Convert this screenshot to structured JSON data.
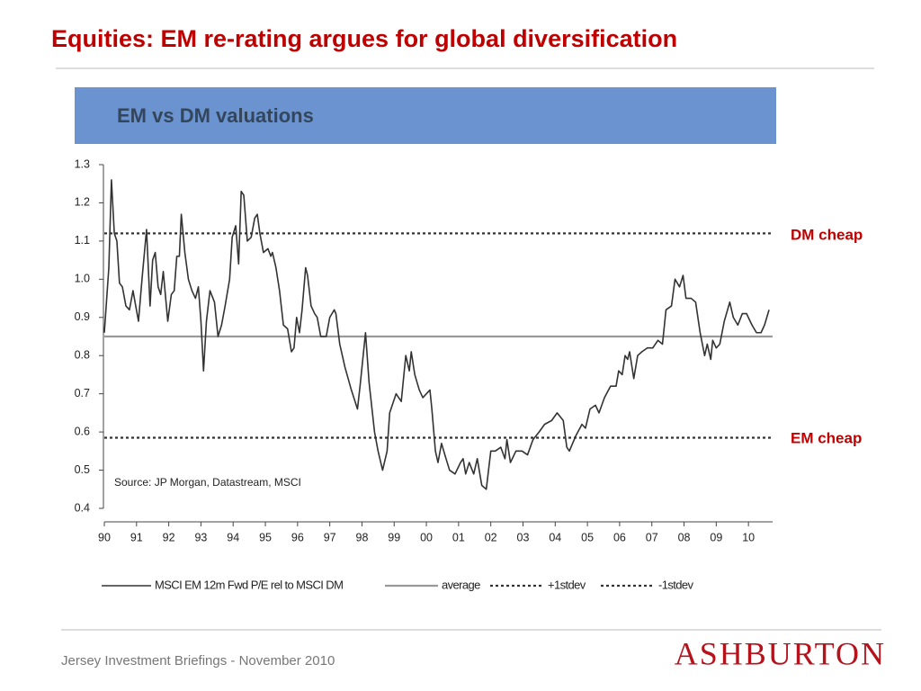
{
  "title": "Equities: EM re-rating argues for global diversification",
  "footer": "Jersey Investment Briefings - November 2010",
  "logo": "ASHBURTON",
  "chart_data": {
    "type": "line",
    "title": "EM vs DM valuations",
    "source": "Source: JP Morgan, Datastream, MSCI",
    "annotations": [
      "DM cheap",
      "EM cheap"
    ],
    "xlim": [
      1990,
      2010.75
    ],
    "xticks": [
      {
        "value": 1990,
        "label": "90"
      },
      {
        "value": 1991,
        "label": "91"
      },
      {
        "value": 1992,
        "label": "92"
      },
      {
        "value": 1993,
        "label": "93"
      },
      {
        "value": 1994,
        "label": "94"
      },
      {
        "value": 1995,
        "label": "95"
      },
      {
        "value": 1996,
        "label": "96"
      },
      {
        "value": 1997,
        "label": "97"
      },
      {
        "value": 1998,
        "label": "98"
      },
      {
        "value": 1999,
        "label": "99"
      },
      {
        "value": 2000,
        "label": "00"
      },
      {
        "value": 2001,
        "label": "01"
      },
      {
        "value": 2002,
        "label": "02"
      },
      {
        "value": 2003,
        "label": "03"
      },
      {
        "value": 2004,
        "label": "04"
      },
      {
        "value": 2005,
        "label": "05"
      },
      {
        "value": 2006,
        "label": "06"
      },
      {
        "value": 2007,
        "label": "07"
      },
      {
        "value": 2008,
        "label": "08"
      },
      {
        "value": 2009,
        "label": "09"
      },
      {
        "value": 2010,
        "label": "10"
      }
    ],
    "ylim": [
      0.4,
      1.3
    ],
    "yticks": [
      1.3,
      1.2,
      1.1,
      {
        "value": 1.0,
        "label": "1.0"
      },
      0.9,
      0.8,
      0.7,
      0.6,
      0.5,
      0.4
    ],
    "grid": false,
    "legend": "bottom",
    "series": [
      {
        "name": "MSCI EM 12m Fwd P/E rel to MSCI DM",
        "color": "#333333",
        "style": "solid",
        "x": [
          1990.0,
          1990.14,
          1990.22,
          1990.31,
          1990.39,
          1990.47,
          1990.56,
          1990.67,
          1990.78,
          1990.89,
          1991.06,
          1991.17,
          1991.31,
          1991.42,
          1991.5,
          1991.58,
          1991.67,
          1991.75,
          1991.83,
          1991.97,
          1992.08,
          1992.17,
          1992.25,
          1992.33,
          1992.39,
          1992.5,
          1992.61,
          1992.72,
          1992.83,
          1992.92,
          1993.0,
          1993.08,
          1993.17,
          1993.28,
          1993.42,
          1993.53,
          1993.64,
          1993.75,
          1993.89,
          1993.97,
          1994.08,
          1994.17,
          1994.25,
          1994.33,
          1994.44,
          1994.56,
          1994.67,
          1994.75,
          1994.83,
          1994.94,
          1995.08,
          1995.17,
          1995.22,
          1995.33,
          1995.44,
          1995.56,
          1995.69,
          1995.81,
          1995.89,
          1995.97,
          1996.06,
          1996.14,
          1996.25,
          1996.31,
          1996.42,
          1996.53,
          1996.61,
          1996.72,
          1996.89,
          1997.0,
          1997.14,
          1997.19,
          1997.31,
          1997.47,
          1997.67,
          1997.86,
          1997.94,
          1998.11,
          1998.22,
          1998.39,
          1998.5,
          1998.64,
          1998.78,
          1998.86,
          1999.06,
          1999.22,
          1999.36,
          1999.47,
          1999.53,
          1999.64,
          1999.78,
          1999.89,
          2000.11,
          2000.17,
          2000.28,
          2000.36,
          2000.47,
          2000.61,
          2000.72,
          2000.89,
          2001.06,
          2001.14,
          2001.22,
          2001.33,
          2001.47,
          2001.58,
          2001.72,
          2001.86,
          2002.0,
          2002.14,
          2002.31,
          2002.44,
          2002.5,
          2002.61,
          2002.78,
          2002.97,
          2003.14,
          2003.31,
          2003.5,
          2003.67,
          2003.89,
          2004.06,
          2004.25,
          2004.36,
          2004.44,
          2004.64,
          2004.83,
          2004.94,
          2005.08,
          2005.25,
          2005.36,
          2005.53,
          2005.72,
          2005.89,
          2005.97,
          2006.08,
          2006.17,
          2006.25,
          2006.31,
          2006.44,
          2006.56,
          2006.69,
          2006.86,
          2007.03,
          2007.19,
          2007.33,
          2007.44,
          2007.61,
          2007.72,
          2007.86,
          2007.97,
          2008.06,
          2008.22,
          2008.36,
          2008.5,
          2008.64,
          2008.72,
          2008.83,
          2008.89,
          2009.0,
          2009.11,
          2009.25,
          2009.42,
          2009.53,
          2009.67,
          2009.81,
          2009.94,
          2010.11,
          2010.25,
          2010.39,
          2010.5,
          2010.64
        ],
        "values": [
          0.86,
          1.03,
          1.26,
          1.12,
          1.1,
          0.99,
          0.98,
          0.93,
          0.92,
          0.97,
          0.89,
          1.0,
          1.13,
          0.93,
          1.05,
          1.07,
          0.98,
          0.96,
          1.02,
          0.89,
          0.96,
          0.97,
          1.06,
          1.06,
          1.17,
          1.07,
          1.0,
          0.97,
          0.95,
          0.98,
          0.89,
          0.76,
          0.89,
          0.97,
          0.94,
          0.85,
          0.88,
          0.93,
          1.0,
          1.11,
          1.14,
          1.04,
          1.23,
          1.22,
          1.1,
          1.11,
          1.16,
          1.17,
          1.12,
          1.07,
          1.08,
          1.06,
          1.07,
          1.03,
          0.97,
          0.88,
          0.87,
          0.81,
          0.82,
          0.9,
          0.86,
          0.92,
          1.03,
          1.01,
          0.93,
          0.91,
          0.9,
          0.85,
          0.85,
          0.9,
          0.92,
          0.91,
          0.83,
          0.77,
          0.71,
          0.66,
          0.72,
          0.86,
          0.73,
          0.6,
          0.55,
          0.5,
          0.55,
          0.65,
          0.7,
          0.68,
          0.8,
          0.76,
          0.81,
          0.75,
          0.71,
          0.69,
          0.71,
          0.66,
          0.55,
          0.52,
          0.57,
          0.53,
          0.5,
          0.49,
          0.52,
          0.53,
          0.49,
          0.52,
          0.49,
          0.53,
          0.46,
          0.45,
          0.55,
          0.55,
          0.56,
          0.53,
          0.58,
          0.52,
          0.55,
          0.55,
          0.54,
          0.58,
          0.6,
          0.62,
          0.63,
          0.65,
          0.63,
          0.56,
          0.55,
          0.59,
          0.62,
          0.61,
          0.66,
          0.67,
          0.65,
          0.69,
          0.72,
          0.72,
          0.76,
          0.75,
          0.8,
          0.79,
          0.81,
          0.74,
          0.8,
          0.81,
          0.82,
          0.82,
          0.84,
          0.83,
          0.92,
          0.93,
          1.0,
          0.98,
          1.01,
          0.95,
          0.95,
          0.94,
          0.86,
          0.8,
          0.83,
          0.79,
          0.84,
          0.82,
          0.83,
          0.89,
          0.94,
          0.9,
          0.88,
          0.91,
          0.91,
          0.88,
          0.86,
          0.86,
          0.88,
          0.92
        ]
      },
      {
        "name": "average",
        "color": "#999999",
        "style": "solid",
        "x": [
          1990,
          2010.75
        ],
        "values": [
          0.85,
          0.85
        ]
      },
      {
        "name": "+1stdev",
        "color": "#333333",
        "style": "dotted",
        "x": [
          1990,
          2010.75
        ],
        "values": [
          1.12,
          1.12
        ]
      },
      {
        "name": "-1stdev",
        "color": "#333333",
        "style": "dotted",
        "x": [
          1990,
          2010.75
        ],
        "values": [
          0.585,
          0.585
        ]
      }
    ]
  }
}
